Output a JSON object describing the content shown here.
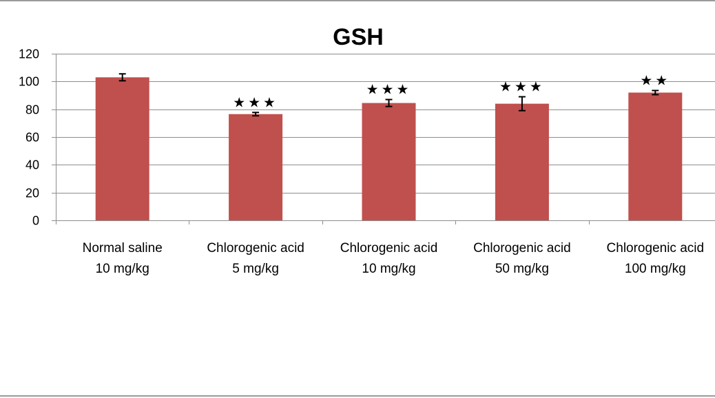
{
  "chart_data": {
    "type": "bar",
    "title": "GSH",
    "xlabel": "",
    "ylabel": "",
    "ylim": [
      0,
      120
    ],
    "yticks": [
      0,
      20,
      40,
      60,
      80,
      100,
      120
    ],
    "grid": true,
    "legend": "none",
    "categories": [
      [
        "Normal saline",
        "10 mg/kg"
      ],
      [
        "Chlorogenic acid",
        "5 mg/kg"
      ],
      [
        "Chlorogenic acid",
        "10 mg/kg"
      ],
      [
        "Chlorogenic acid",
        "50 mg/kg"
      ],
      [
        "Chlorogenic acid",
        "100 mg/kg"
      ]
    ],
    "values": [
      103,
      76.5,
      84.5,
      84,
      92
    ],
    "errors": [
      2.5,
      1.2,
      2.5,
      5,
      1.5
    ],
    "significance": [
      "",
      "★★★",
      "★★★",
      "★★★",
      "★★"
    ],
    "bar_color": "#c0504d",
    "grid_color": "#8c8c8c",
    "axis_color": "#8c8c8c"
  }
}
